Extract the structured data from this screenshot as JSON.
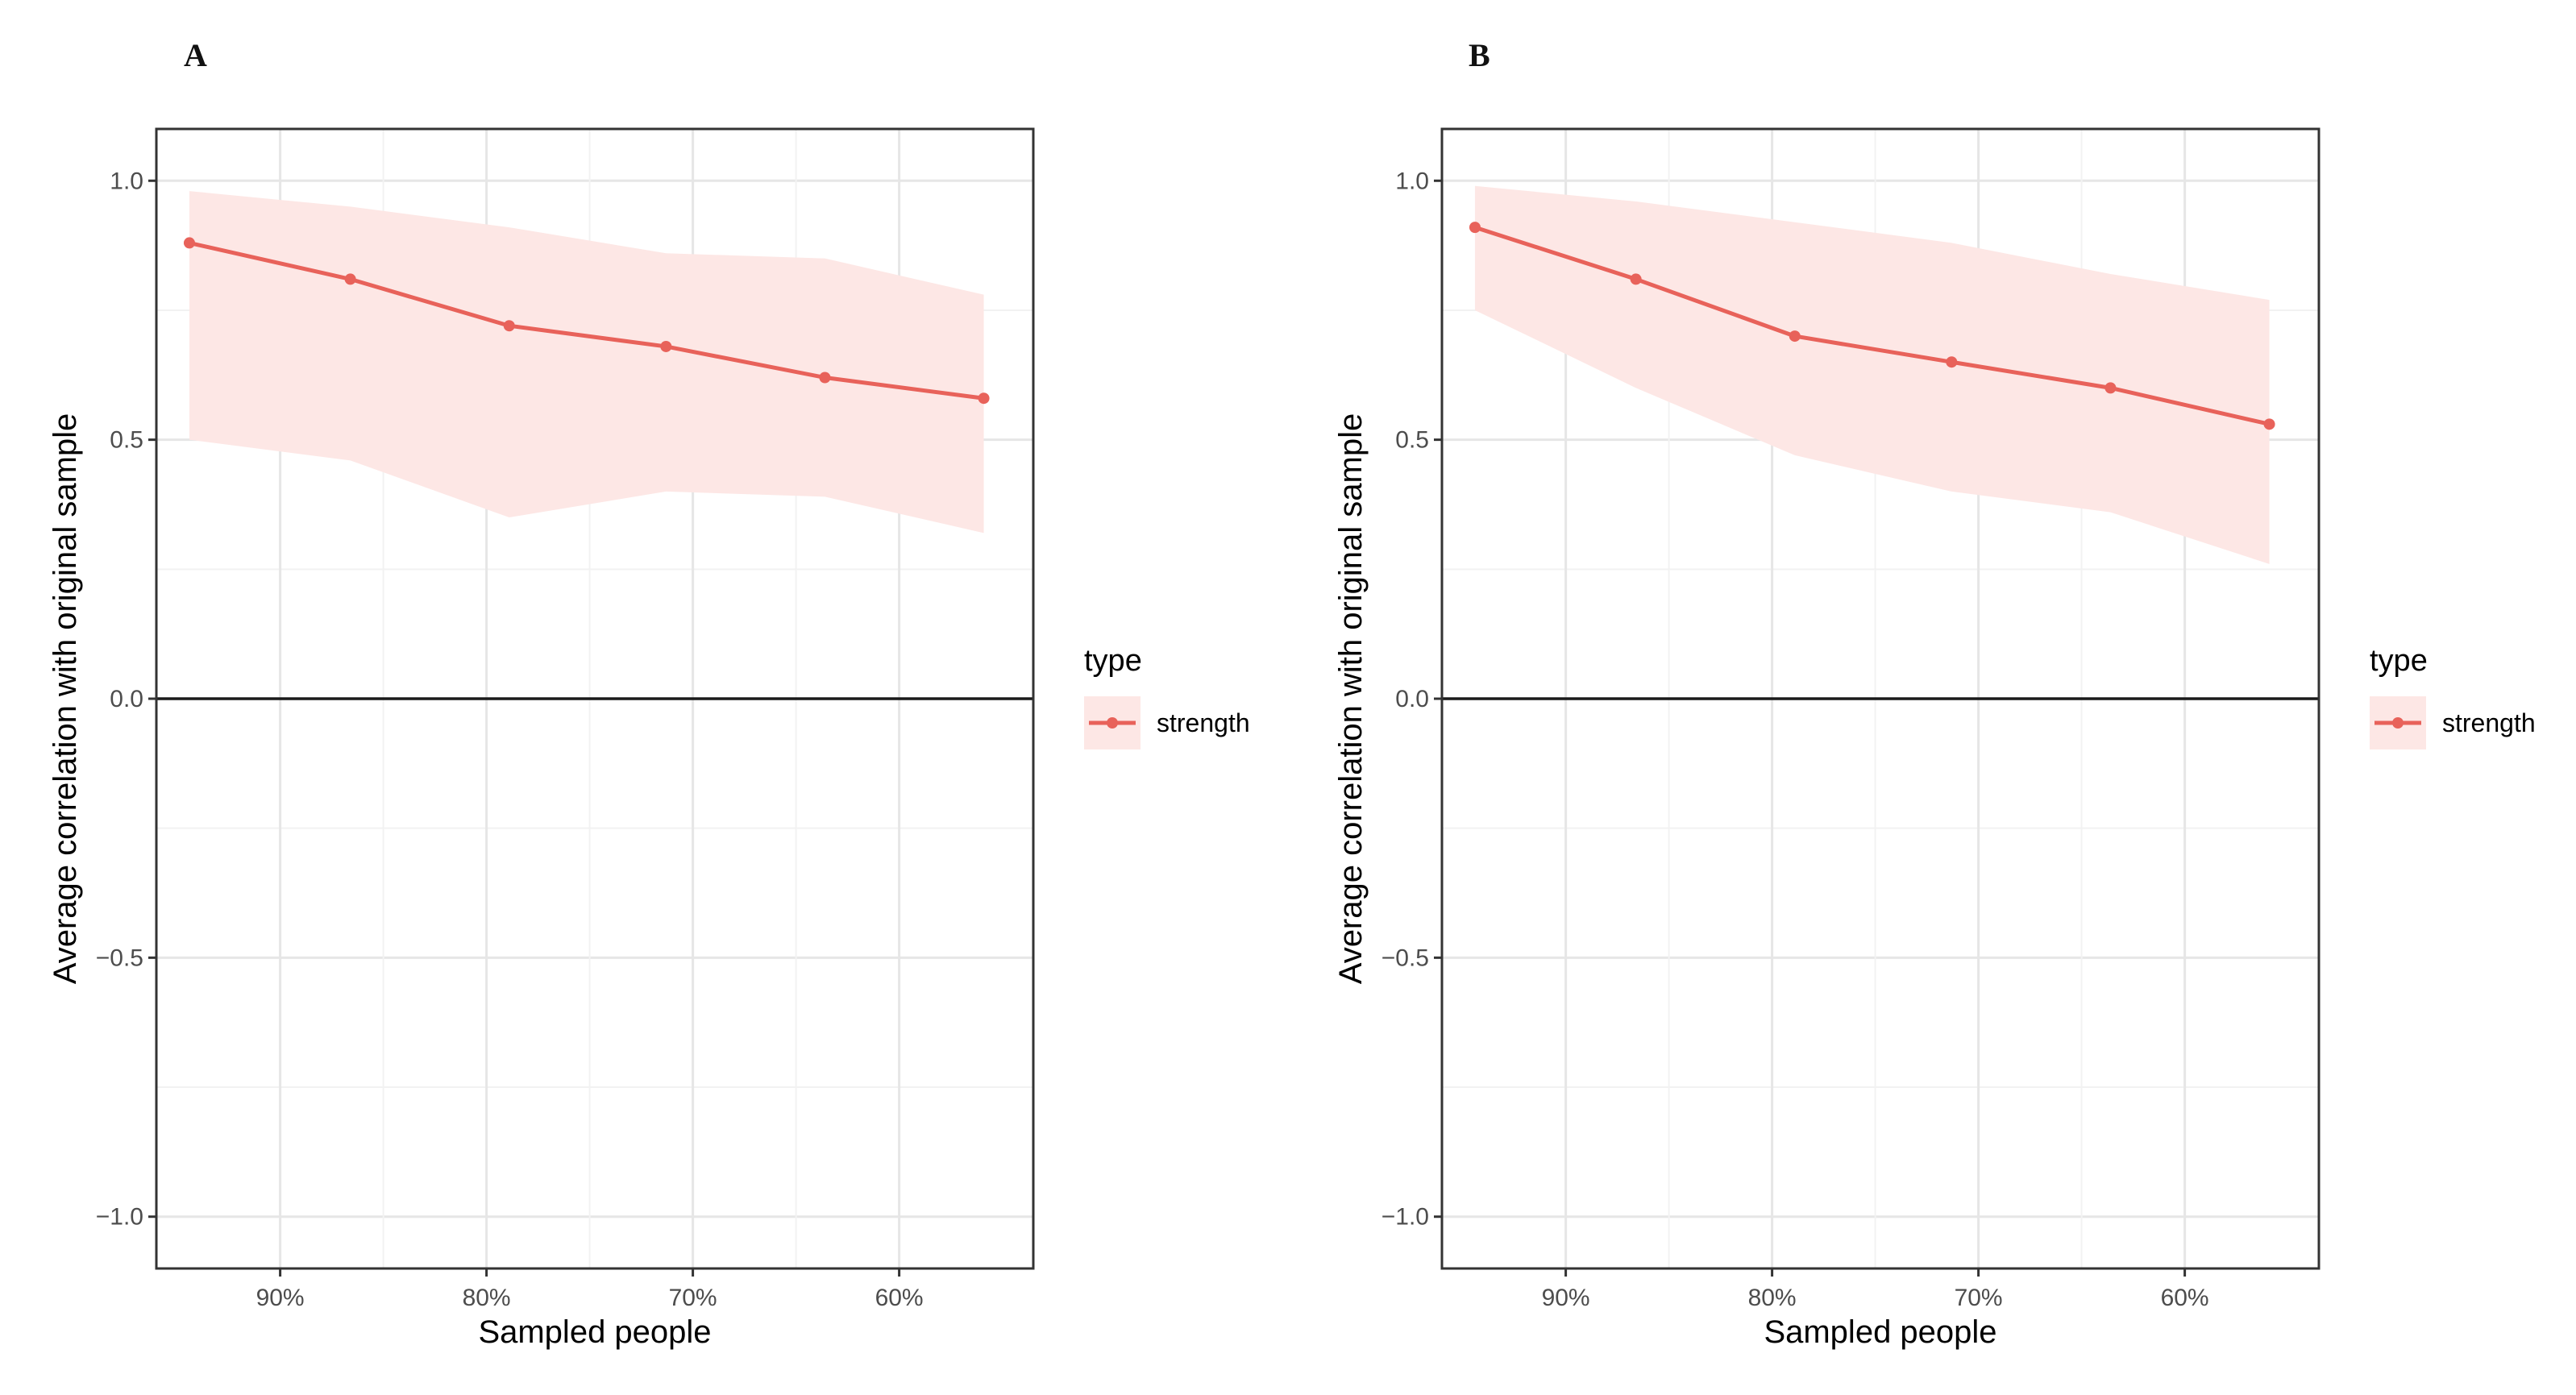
{
  "chart_data": [
    {
      "type": "line",
      "panel": "A",
      "xlabel": "Sampled people",
      "ylabel": "Average correlation with original sample",
      "ylim": [
        -1.1,
        1.1
      ],
      "yticks": [
        -1.0,
        -0.5,
        0.0,
        0.5,
        1.0
      ],
      "ytick_labels": [
        "−1.0",
        "−0.5",
        "0.0",
        "0.5",
        "1.0"
      ],
      "xlim": [
        96,
        53.5
      ],
      "xticks": [
        90,
        80,
        70,
        60
      ],
      "xtick_labels": [
        "90%",
        "80%",
        "70%",
        "60%"
      ],
      "grid": true,
      "hline": 0,
      "legend": {
        "title": "type",
        "entries": [
          "strength"
        ],
        "placement": "right"
      },
      "series": [
        {
          "name": "strength",
          "color": "#e8625a",
          "ribbon_color": "#fde7e5",
          "x": [
            94.4,
            86.6,
            78.9,
            71.3,
            63.6,
            55.9
          ],
          "values": [
            0.88,
            0.81,
            0.72,
            0.68,
            0.62,
            0.58
          ],
          "upper": [
            0.98,
            0.95,
            0.91,
            0.86,
            0.85,
            0.78
          ],
          "lower": [
            0.5,
            0.46,
            0.35,
            0.4,
            0.39,
            0.32
          ]
        }
      ]
    },
    {
      "type": "line",
      "panel": "B",
      "xlabel": "Sampled people",
      "ylabel": "Average correlation with original sample",
      "ylim": [
        -1.1,
        1.1
      ],
      "yticks": [
        -1.0,
        -0.5,
        0.0,
        0.5,
        1.0
      ],
      "ytick_labels": [
        "−1.0",
        "−0.5",
        "0.0",
        "0.5",
        "1.0"
      ],
      "xlim": [
        96,
        53.5
      ],
      "xticks": [
        90,
        80,
        70,
        60
      ],
      "xtick_labels": [
        "90%",
        "80%",
        "70%",
        "60%"
      ],
      "grid": true,
      "hline": 0,
      "legend": {
        "title": "type",
        "entries": [
          "strength"
        ],
        "placement": "right"
      },
      "series": [
        {
          "name": "strength",
          "color": "#e8625a",
          "ribbon_color": "#fde7e5",
          "x": [
            94.4,
            86.6,
            78.9,
            71.3,
            63.6,
            55.9
          ],
          "values": [
            0.91,
            0.81,
            0.7,
            0.65,
            0.6,
            0.53
          ],
          "upper": [
            0.99,
            0.96,
            0.92,
            0.88,
            0.82,
            0.77
          ],
          "lower": [
            0.75,
            0.6,
            0.47,
            0.4,
            0.36,
            0.26
          ]
        }
      ]
    }
  ]
}
